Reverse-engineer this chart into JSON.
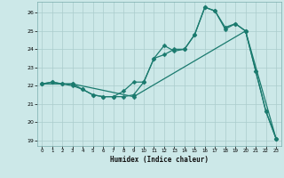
{
  "title": "",
  "xlabel": "Humidex (Indice chaleur)",
  "background_color": "#cce8e8",
  "grid_color": "#aacccc",
  "line_color": "#1a7a6e",
  "xlim": [
    -0.5,
    23.5
  ],
  "ylim": [
    18.7,
    26.6
  ],
  "yticks": [
    19,
    20,
    21,
    22,
    23,
    24,
    25,
    26
  ],
  "xticks": [
    0,
    1,
    2,
    3,
    4,
    5,
    6,
    7,
    8,
    9,
    10,
    11,
    12,
    13,
    14,
    15,
    16,
    17,
    18,
    19,
    20,
    21,
    22,
    23
  ],
  "line1_x": [
    0,
    1,
    2,
    3,
    4,
    5,
    6,
    7,
    8,
    9,
    10,
    11,
    12,
    13,
    14,
    15,
    16,
    17,
    18,
    19,
    20,
    21,
    22,
    23
  ],
  "line1_y": [
    22.1,
    22.2,
    22.1,
    22.0,
    21.8,
    21.5,
    21.4,
    21.4,
    21.7,
    22.2,
    22.2,
    23.5,
    23.7,
    24.0,
    24.0,
    24.8,
    26.3,
    26.1,
    25.1,
    25.4,
    25.0,
    22.8,
    20.6,
    19.1
  ],
  "line2_x": [
    0,
    1,
    2,
    3,
    4,
    5,
    6,
    7,
    8,
    9,
    10,
    11,
    12,
    13,
    14,
    15,
    16,
    17,
    18,
    19,
    20,
    21,
    22,
    23
  ],
  "line2_y": [
    22.1,
    22.2,
    22.1,
    22.1,
    21.8,
    21.5,
    21.4,
    21.4,
    21.4,
    21.5,
    22.2,
    23.5,
    24.2,
    23.9,
    24.0,
    24.8,
    26.3,
    26.1,
    25.2,
    25.4,
    25.0,
    22.8,
    20.6,
    19.1
  ],
  "line3_x": [
    0,
    3,
    9,
    20,
    23
  ],
  "line3_y": [
    22.1,
    22.1,
    21.4,
    25.0,
    19.1
  ]
}
